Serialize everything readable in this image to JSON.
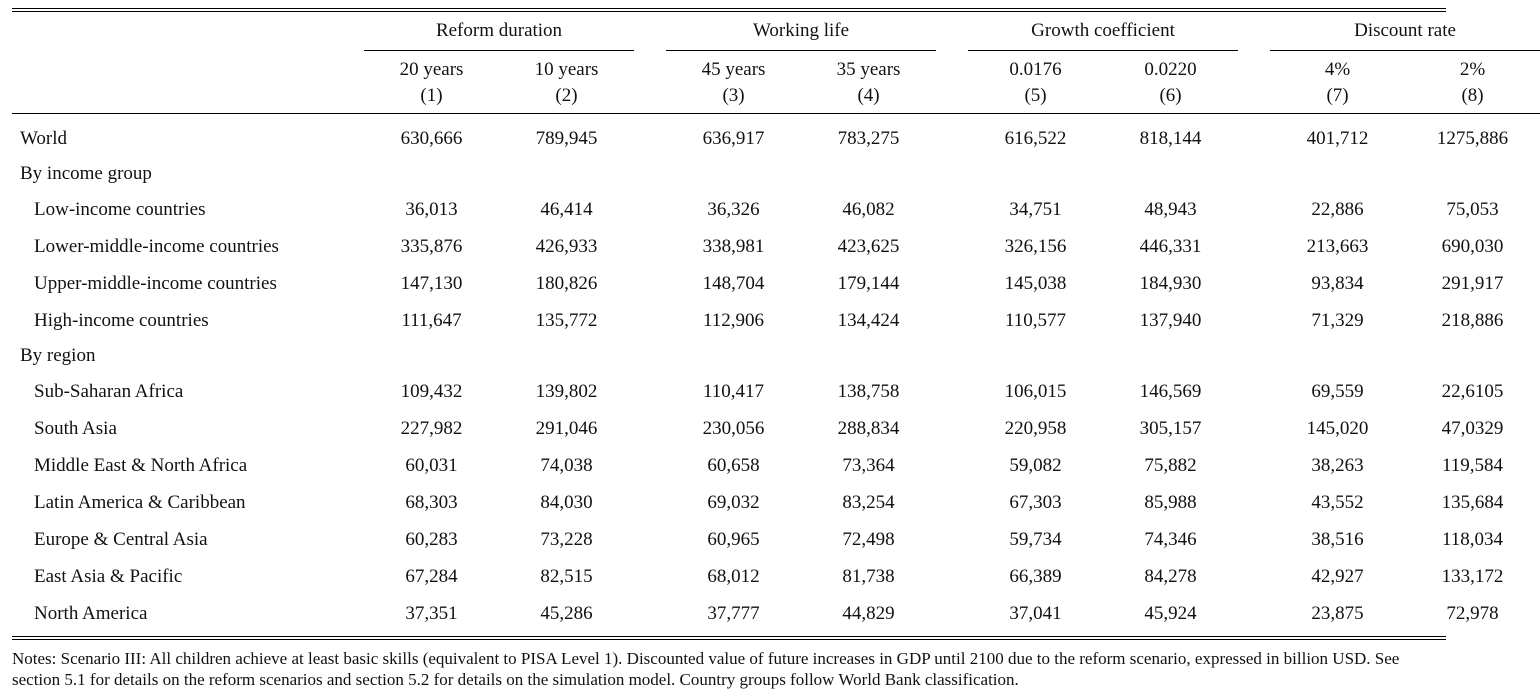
{
  "groups": [
    {
      "label": "Reform duration",
      "cols": [
        "20 years",
        "10 years"
      ],
      "idx": [
        "(1)",
        "(2)"
      ]
    },
    {
      "label": "Working life",
      "cols": [
        "45 years",
        "35 years"
      ],
      "idx": [
        "(3)",
        "(4)"
      ]
    },
    {
      "label": "Growth coefficient",
      "cols": [
        "0.0176",
        "0.0220"
      ],
      "idx": [
        "(5)",
        "(6)"
      ]
    },
    {
      "label": "Discount rate",
      "cols": [
        "4%",
        "2%"
      ],
      "idx": [
        "(7)",
        "(8)"
      ]
    }
  ],
  "rows": [
    {
      "type": "data",
      "label": "World",
      "indent": false,
      "values": [
        "630,666",
        "789,945",
        "636,917",
        "783,275",
        "616,522",
        "818,144",
        "401,712",
        "1275,886"
      ]
    },
    {
      "type": "category",
      "label": "By income group"
    },
    {
      "type": "data",
      "label": "Low-income countries",
      "indent": true,
      "values": [
        "36,013",
        "46,414",
        "36,326",
        "46,082",
        "34,751",
        "48,943",
        "22,886",
        "75,053"
      ]
    },
    {
      "type": "data",
      "label": "Lower-middle-income countries",
      "indent": true,
      "values": [
        "335,876",
        "426,933",
        "338,981",
        "423,625",
        "326,156",
        "446,331",
        "213,663",
        "690,030"
      ]
    },
    {
      "type": "data",
      "label": "Upper-middle-income countries",
      "indent": true,
      "values": [
        "147,130",
        "180,826",
        "148,704",
        "179,144",
        "145,038",
        "184,930",
        "93,834",
        "291,917"
      ]
    },
    {
      "type": "data",
      "label": "High-income countries",
      "indent": true,
      "values": [
        "111,647",
        "135,772",
        "112,906",
        "134,424",
        "110,577",
        "137,940",
        "71,329",
        "218,886"
      ]
    },
    {
      "type": "category",
      "label": "By region"
    },
    {
      "type": "data",
      "label": "Sub-Saharan Africa",
      "indent": true,
      "values": [
        "109,432",
        "139,802",
        "110,417",
        "138,758",
        "106,015",
        "146,569",
        "69,559",
        "22,6105"
      ]
    },
    {
      "type": "data",
      "label": "South Asia",
      "indent": true,
      "values": [
        "227,982",
        "291,046",
        "230,056",
        "288,834",
        "220,958",
        "305,157",
        "145,020",
        "47,0329"
      ]
    },
    {
      "type": "data",
      "label": "Middle East & North Africa",
      "indent": true,
      "values": [
        "60,031",
        "74,038",
        "60,658",
        "73,364",
        "59,082",
        "75,882",
        "38,263",
        "119,584"
      ]
    },
    {
      "type": "data",
      "label": "Latin America & Caribbean",
      "indent": true,
      "values": [
        "68,303",
        "84,030",
        "69,032",
        "83,254",
        "67,303",
        "85,988",
        "43,552",
        "135,684"
      ]
    },
    {
      "type": "data",
      "label": "Europe & Central Asia",
      "indent": true,
      "values": [
        "60,283",
        "73,228",
        "60,965",
        "72,498",
        "59,734",
        "74,346",
        "38,516",
        "118,034"
      ]
    },
    {
      "type": "data",
      "label": "East Asia & Pacific",
      "indent": true,
      "values": [
        "67,284",
        "82,515",
        "68,012",
        "81,738",
        "66,389",
        "84,278",
        "42,927",
        "133,172"
      ]
    },
    {
      "type": "data",
      "label": "North America",
      "indent": true,
      "values": [
        "37,351",
        "45,286",
        "37,777",
        "44,829",
        "37,041",
        "45,924",
        "23,875",
        "72,978"
      ]
    }
  ],
  "notes": "Notes: Scenario III: All children achieve at least basic skills (equivalent to PISA Level 1). Discounted value of future increases in GDP until 2100 due to the reform scenario, expressed in billion USD. See section 5.1 for details on the reform scenarios and section 5.2 for details on the simulation model. Country groups follow World Bank classification."
}
